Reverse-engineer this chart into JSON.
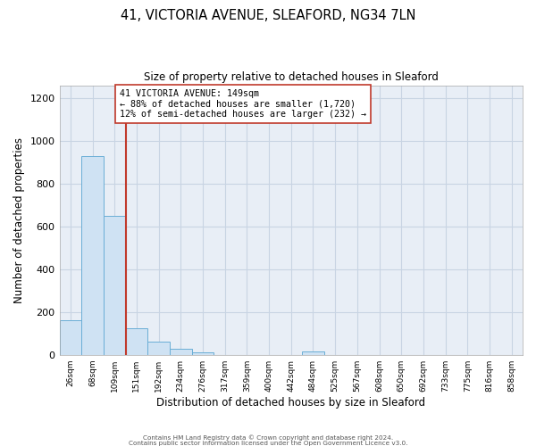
{
  "title_line1": "41, VICTORIA AVENUE, SLEAFORD, NG34 7LN",
  "title_line2": "Size of property relative to detached houses in Sleaford",
  "xlabel": "Distribution of detached houses by size in Sleaford",
  "ylabel": "Number of detached properties",
  "bin_labels": [
    "26sqm",
    "68sqm",
    "109sqm",
    "151sqm",
    "192sqm",
    "234sqm",
    "276sqm",
    "317sqm",
    "359sqm",
    "400sqm",
    "442sqm",
    "484sqm",
    "525sqm",
    "567sqm",
    "608sqm",
    "650sqm",
    "692sqm",
    "733sqm",
    "775sqm",
    "816sqm",
    "858sqm"
  ],
  "bar_heights": [
    160,
    930,
    650,
    125,
    60,
    27,
    10,
    0,
    0,
    0,
    0,
    15,
    0,
    0,
    0,
    0,
    0,
    0,
    0,
    0,
    0
  ],
  "bar_color": "#cfe2f3",
  "bar_edge_color": "#6aaed6",
  "grid_color": "#c8d4e3",
  "vline_color": "#c0392b",
  "annotation_text": "41 VICTORIA AVENUE: 149sqm\n← 88% of detached houses are smaller (1,720)\n12% of semi-detached houses are larger (232) →",
  "annotation_box_edge": "#c0392b",
  "ylim": [
    0,
    1260
  ],
  "yticks": [
    0,
    200,
    400,
    600,
    800,
    1000,
    1200
  ],
  "footer_line1": "Contains HM Land Registry data © Crown copyright and database right 2024.",
  "footer_line2": "Contains public sector information licensed under the Open Government Licence v3.0.",
  "background_color": "#ffffff",
  "plot_bg_color": "#e8eef6"
}
